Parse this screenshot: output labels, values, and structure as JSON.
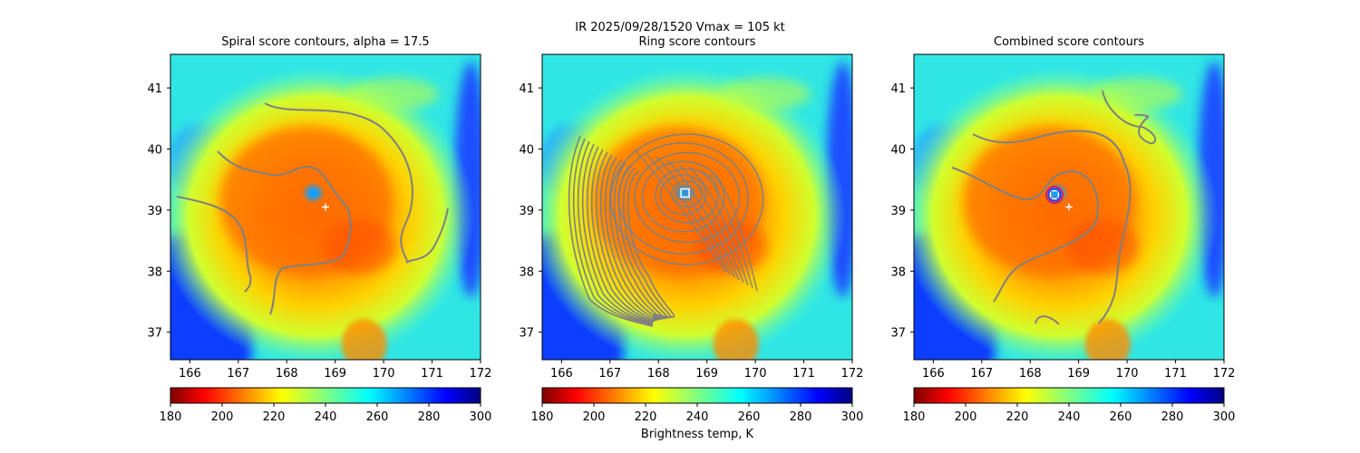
{
  "figure": {
    "suptitle_line1": "IR  2025/09/28/1520    Vmax = 105 kt",
    "colorbar_label": "Brightness temp, K"
  },
  "panels": [
    {
      "title": "Spiral score contours, alpha = 17.5"
    },
    {
      "title": "Ring score contours"
    },
    {
      "title": "Combined score contours"
    }
  ],
  "colors": {
    "contour": "#808080",
    "marker_white": "#ffffff",
    "ring_outer": "#d81b60",
    "ring_inner": "#1f3fff"
  },
  "chart_data": [
    {
      "type": "heatmap",
      "title": "Spiral score contours, alpha = 17.5",
      "xlim": [
        165.6,
        172.0
      ],
      "ylim": [
        36.55,
        41.55
      ],
      "xticks": [
        166,
        167,
        168,
        169,
        170,
        171,
        172
      ],
      "yticks": [
        37,
        38,
        39,
        40,
        41
      ],
      "colorbar": {
        "cmap": "jet_r",
        "range": [
          180,
          300
        ],
        "ticks": [
          180,
          200,
          220,
          240,
          260,
          280,
          300
        ]
      },
      "markers": [
        {
          "symbol": "plus",
          "lon": 168.8,
          "lat": 39.05
        }
      ],
      "eye_cold_spot": {
        "lon": 168.55,
        "lat": 39.28
      }
    },
    {
      "type": "heatmap",
      "title": "Ring score contours",
      "xlim": [
        165.6,
        172.0
      ],
      "ylim": [
        36.55,
        41.55
      ],
      "xticks": [
        166,
        167,
        168,
        169,
        170,
        171,
        172
      ],
      "yticks": [
        37,
        38,
        39,
        40,
        41
      ],
      "colorbar": {
        "cmap": "jet_r",
        "range": [
          180,
          300
        ],
        "ticks": [
          180,
          200,
          220,
          240,
          260,
          280,
          300
        ],
        "label": "Brightness temp, K"
      },
      "markers": [
        {
          "symbol": "square",
          "lon": 168.55,
          "lat": 39.28
        }
      ],
      "contour_center": {
        "lon": 168.55,
        "lat": 39.28
      }
    },
    {
      "type": "heatmap",
      "title": "Combined score contours",
      "xlim": [
        165.6,
        172.0
      ],
      "ylim": [
        36.55,
        41.55
      ],
      "xticks": [
        166,
        167,
        168,
        169,
        170,
        171,
        172
      ],
      "yticks": [
        37,
        38,
        39,
        40,
        41
      ],
      "colorbar": {
        "cmap": "jet_r",
        "range": [
          180,
          300
        ],
        "ticks": [
          180,
          200,
          220,
          240,
          260,
          280,
          300
        ]
      },
      "markers": [
        {
          "symbol": "plus",
          "lon": 168.8,
          "lat": 39.05
        },
        {
          "symbol": "square",
          "lon": 168.5,
          "lat": 39.25
        },
        {
          "symbol": "circle",
          "lon": 168.5,
          "lat": 39.25
        }
      ]
    }
  ]
}
